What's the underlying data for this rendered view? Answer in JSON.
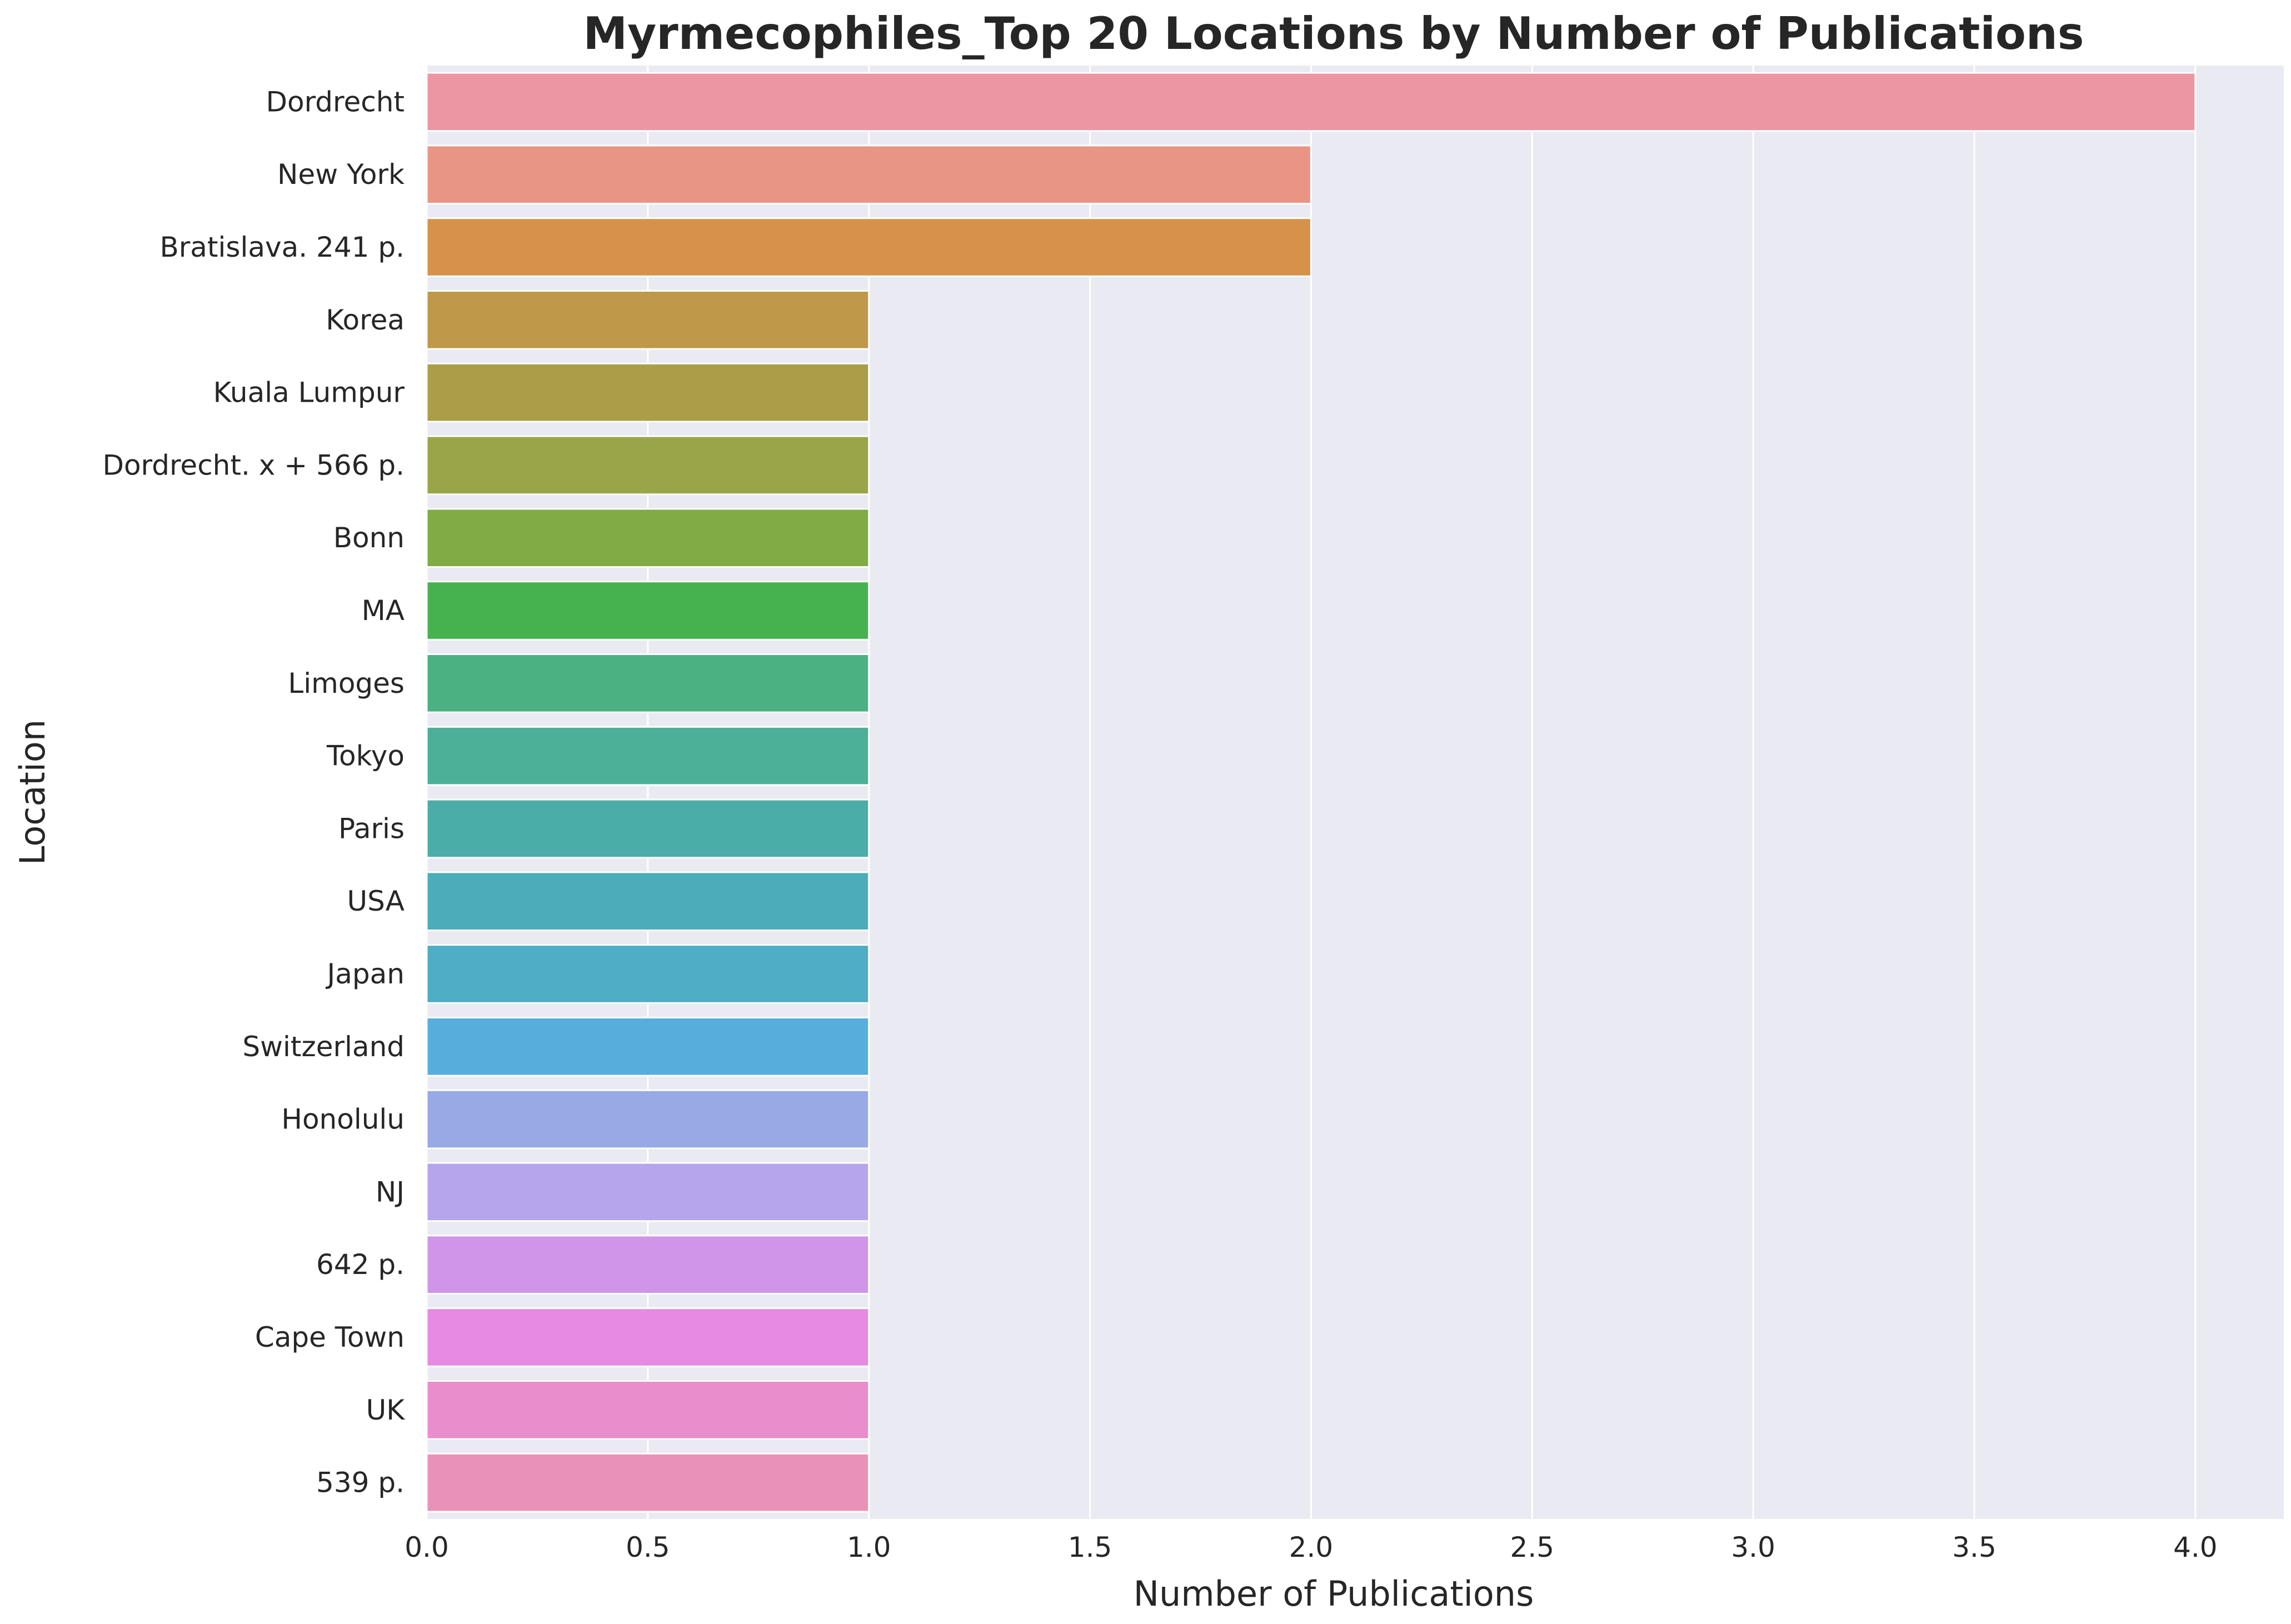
{
  "chart_data": {
    "type": "bar",
    "orientation": "horizontal",
    "title": "Myrmecophiles_Top 20 Locations by Number of Publications",
    "xlabel": "Number of Publications",
    "ylabel": "Location",
    "xlim": [
      0,
      4.2
    ],
    "x_ticks": [
      "0.0",
      "0.5",
      "1.0",
      "1.5",
      "2.0",
      "2.5",
      "3.0",
      "3.5",
      "4.0"
    ],
    "grid": true,
    "categories": [
      "Dordrecht",
      "New York",
      "Bratislava.  241 p.",
      "Korea",
      "Kuala Lumpur",
      "Dordrecht.  x + 566 p.",
      "Bonn",
      "MA",
      "Limoges",
      "Tokyo",
      "Paris",
      "USA",
      "Japan",
      "Switzerland",
      "Honolulu",
      "NJ",
      "642 p.",
      "Cape Town",
      "UK",
      "539 p."
    ],
    "values": [
      4,
      2,
      2,
      1,
      1,
      1,
      1,
      1,
      1,
      1,
      1,
      1,
      1,
      1,
      1,
      1,
      1,
      1,
      1,
      1
    ],
    "colors": [
      "#ec96a3",
      "#e89683",
      "#d6924b",
      "#bf9949",
      "#aa9e48",
      "#9aa54a",
      "#81ab45",
      "#46b24f",
      "#4bb182",
      "#4bb097",
      "#4bada8",
      "#4badb9",
      "#4fadc6",
      "#57aedc",
      "#97aae6",
      "#b6a5ec",
      "#d095e6",
      "#e68ae3",
      "#e98dcc",
      "#e992b8"
    ]
  }
}
